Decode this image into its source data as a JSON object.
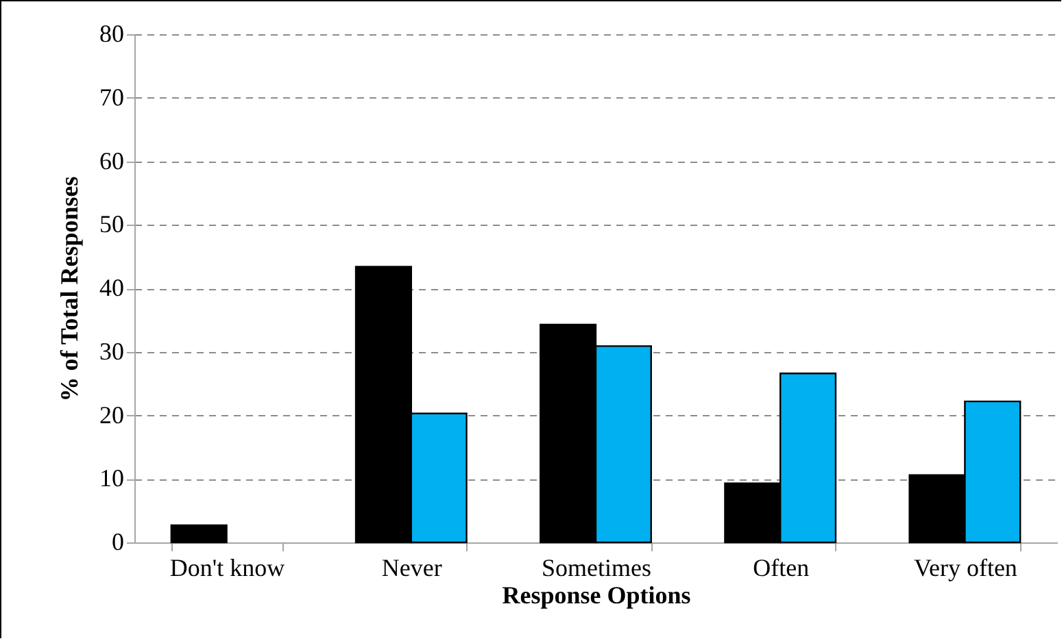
{
  "chart_data": {
    "type": "bar",
    "xlabel": "Response Options",
    "ylabel": "% of Total Responses",
    "categories": [
      "Don't know",
      "Never",
      "Sometimes",
      "Often",
      "Very often"
    ],
    "series": [
      {
        "color": "#000000",
        "values": [
          2.7,
          43.4,
          34.3,
          9.3,
          10.6
        ]
      },
      {
        "color": "#00b0f0",
        "values": [
          null,
          20.3,
          30.9,
          26.6,
          22.2
        ]
      }
    ],
    "ylim": [
      0,
      80
    ],
    "yticks": [
      0,
      10,
      20,
      30,
      40,
      50,
      60,
      70,
      80
    ],
    "grid": "y",
    "legend": false
  }
}
